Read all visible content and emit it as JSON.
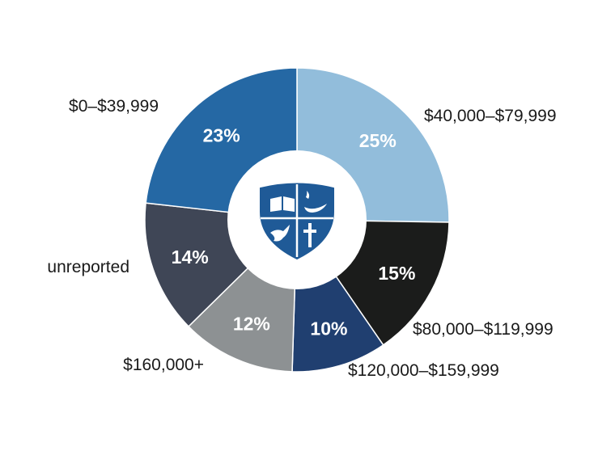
{
  "chart_data": {
    "type": "pie",
    "title": "",
    "categories": [
      "$40,000–$79,999",
      "$80,000–$119,999",
      "$120,000–$159,999",
      "$160,000+",
      "unreported",
      "$0–$39,999"
    ],
    "values": [
      25,
      15,
      10,
      12,
      14,
      23
    ],
    "value_labels": [
      "25%",
      "15%",
      "10%",
      "12%",
      "14%",
      "23%"
    ],
    "colors": [
      "#92bddb",
      "#1b1c1b",
      "#203f70",
      "#8d9193",
      "#3f4656",
      "#2568a4"
    ],
    "start": "12 o'clock",
    "direction": "clockwise",
    "center_emblem": "shield-crest-icon",
    "legend": "none"
  }
}
